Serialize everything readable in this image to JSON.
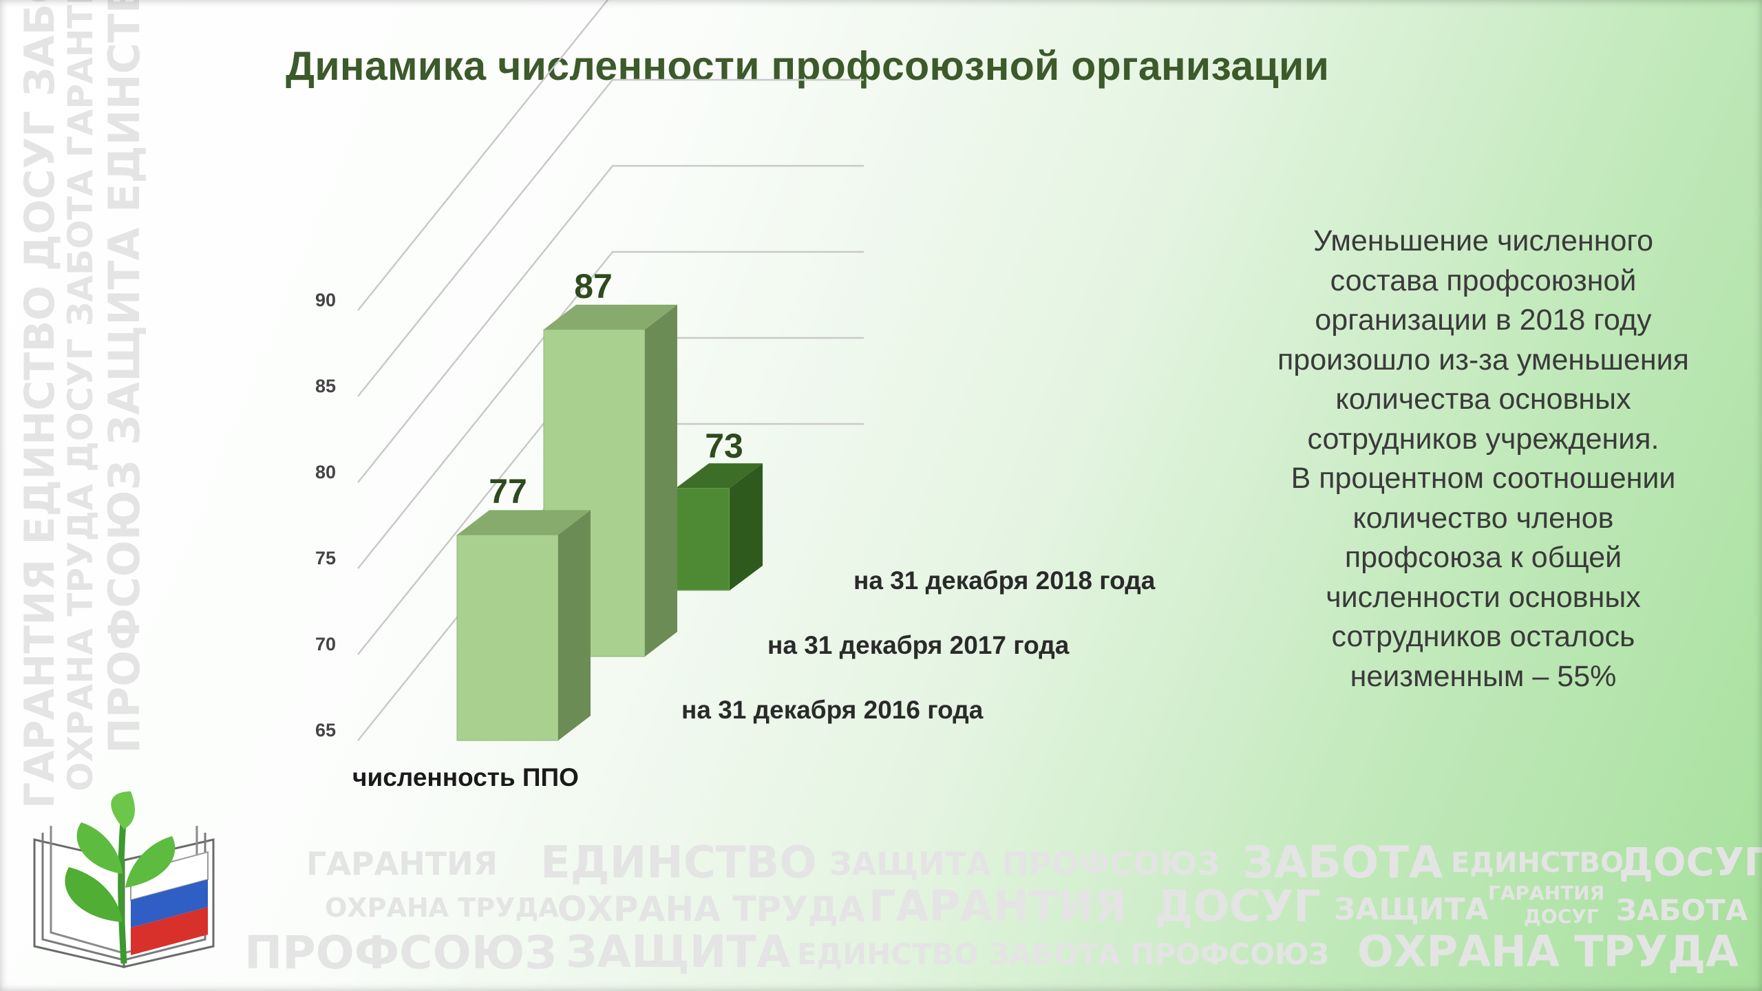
{
  "slide": {
    "title": "Динамика численности профсоюзной организации",
    "side_text_lines": [
      "Уменьшение численного",
      "состава профсоюзной",
      "организации в 2018 году",
      "произошло из-за уменьшения",
      "количества основных",
      "сотрудников учреждения.",
      "В процентном соотношении",
      "количество членов",
      "профсоюза к общей",
      "численности основных",
      "сотрудников осталось",
      "неизменным – 55%"
    ],
    "watermark_words": {
      "vertical_1": "ГАРАНТИЯ ЕДИНСТВО ДОСУГ ЗАБОТА",
      "vertical_2": "ОХРАНА ТРУДА ДОСУГ ЗАБОТА ГАРАНТИЯ",
      "vertical_3": "ПРОФСОЮЗ ЗАЩИТА ЕДИНСТВО",
      "row_1a": "ГАРАНТИЯ",
      "row_1b": "ЕДИНСТВО",
      "row_1c": "ЗАЩИТА ПРОФСОЮЗ",
      "row_1d": "ЗАБОТА",
      "row_1e": "ЕДИНСТВО",
      "row_1f": "ДОСУГ",
      "row_2a": "ОХРАНА ТРУДА",
      "row_2b": "ОХРАНА ТРУДА",
      "row_2c": "ГАРАНТИЯ",
      "row_2d": "ДОСУГ",
      "row_2e": "ЗАЩИТА",
      "row_2f": "ГАРАНТИЯ",
      "row_2g": "ДОСУГ",
      "row_2h": "ЗАБОТА",
      "row_3a": "ПРОФСОЮЗ",
      "row_3b": "ЗАЩИТА",
      "row_3c": "ЕДИНСТВО ЗАБОТА ПРОФСОЮЗ",
      "row_3d": "ОХРАНА ТРУДА"
    },
    "colors": {
      "title": "#3c5a2a",
      "series_2016": "#a9d08e",
      "series_2017": "#a9d08e",
      "series_2018": "#4e8a33",
      "label_text": "#2e4a1e"
    }
  },
  "chart_data": {
    "type": "bar",
    "style": "3d-column",
    "categories": [
      "численность ППО"
    ],
    "series": [
      {
        "name": "на 31 декабря 2016 года",
        "values": [
          77
        ]
      },
      {
        "name": "на 31 декабря 2017 года",
        "values": [
          87
        ]
      },
      {
        "name": "на 31 декабря 2018 года",
        "values": [
          73
        ]
      }
    ],
    "data_labels": [
      "77",
      "87",
      "73"
    ],
    "ylim": [
      65,
      90
    ],
    "yticks": [
      "65",
      "70",
      "75",
      "80",
      "85",
      "90"
    ],
    "grid": true
  }
}
